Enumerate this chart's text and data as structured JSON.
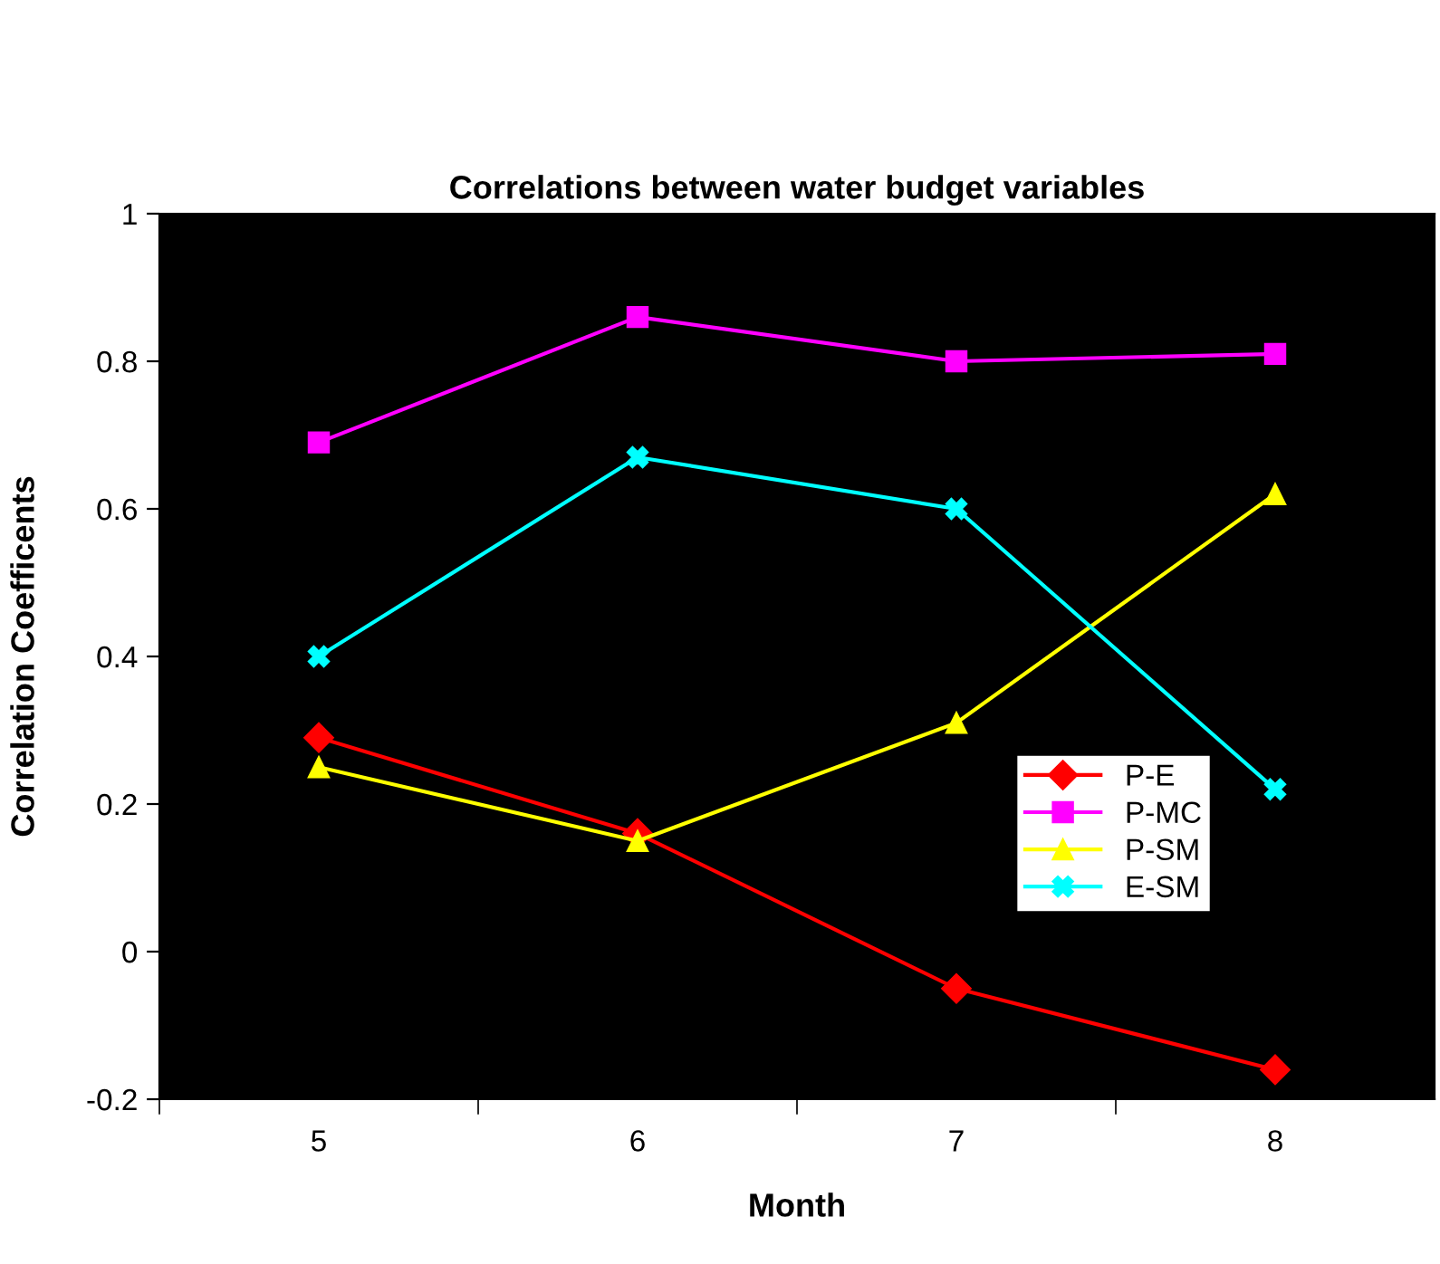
{
  "chart_data": {
    "type": "line",
    "title": "Correlations between water budget variables",
    "xlabel": "Month",
    "ylabel": "Correlation Coefficents",
    "categories": [
      "5",
      "6",
      "7",
      "8"
    ],
    "series": [
      {
        "name": "P-E",
        "color": "#ff0000",
        "marker": "diamond",
        "values": [
          0.29,
          0.16,
          -0.05,
          -0.16
        ]
      },
      {
        "name": "P-MC",
        "color": "#ff00ff",
        "marker": "square",
        "values": [
          0.69,
          0.86,
          0.8,
          0.81
        ]
      },
      {
        "name": "P-SM",
        "color": "#ffff00",
        "marker": "triangle",
        "values": [
          0.25,
          0.15,
          0.31,
          0.62
        ]
      },
      {
        "name": "E-SM",
        "color": "#00ffff",
        "marker": "cross",
        "values": [
          0.4,
          0.67,
          0.6,
          0.22
        ]
      }
    ],
    "ylim": [
      -0.2,
      1
    ],
    "yticks": [
      {
        "value": -0.2,
        "label": "-0.2"
      },
      0,
      0.2,
      0.4,
      0.6,
      0.8,
      1
    ],
    "grid": false,
    "legend": "right"
  }
}
